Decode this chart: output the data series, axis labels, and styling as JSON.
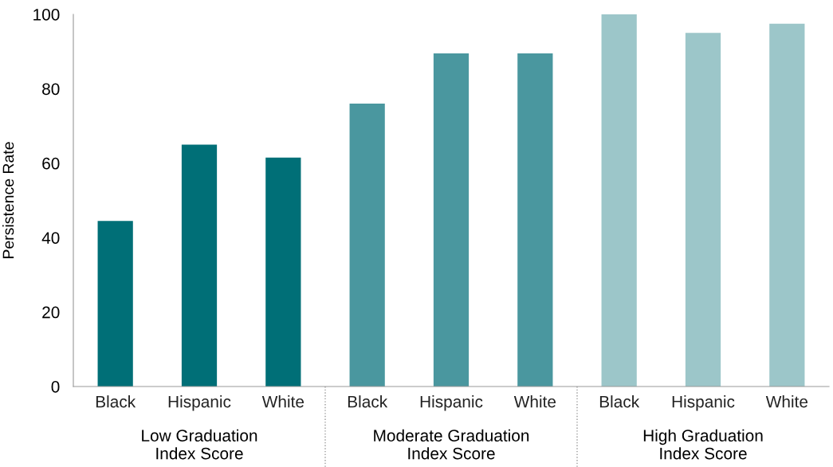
{
  "chart_data": {
    "type": "bar",
    "ylabel": "Persistence Rate",
    "categories": [
      "Black",
      "Hispanic",
      "White",
      "Black",
      "Hispanic",
      "White",
      "Black",
      "Hispanic",
      "White"
    ],
    "values": [
      44.5,
      65,
      61.5,
      76,
      89.5,
      89.5,
      100,
      95,
      97.5
    ],
    "colors": [
      "#006f77",
      "#006f77",
      "#006f77",
      "#4a979f",
      "#4a979f",
      "#4a979f",
      "#9cc6c9",
      "#9cc6c9",
      "#9cc6c9"
    ],
    "ylim": [
      0,
      100
    ],
    "yticks": [
      0,
      20,
      40,
      60,
      80,
      100
    ],
    "grid": false,
    "annotations": [
      "Low Graduation\nIndex Score",
      "Moderate Graduation\nIndex Score",
      "High Graduation\nIndex Score"
    ]
  }
}
